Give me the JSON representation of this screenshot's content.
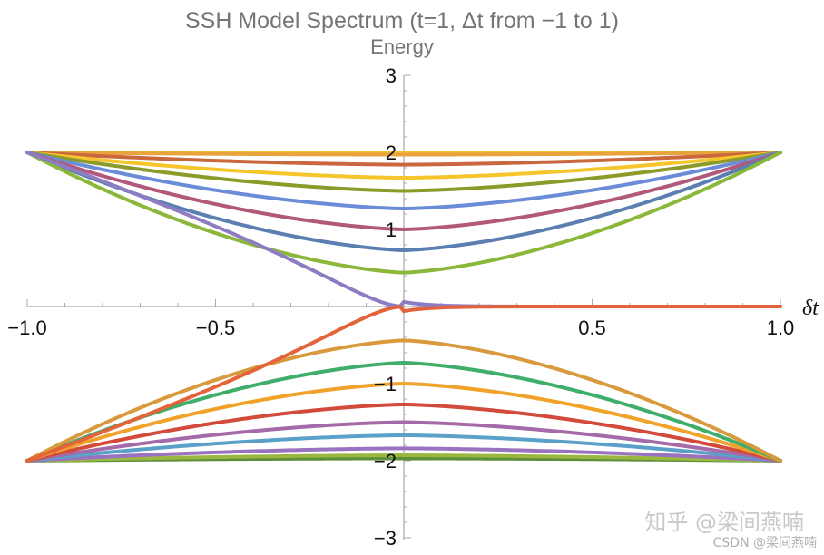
{
  "chart_data": {
    "type": "line",
    "title": "SSH Model Spectrum (t=1, Δt from −1 to 1)",
    "xlabel": "δt",
    "ylabel": "Energy",
    "xlim": [
      -1.0,
      1.0
    ],
    "ylim": [
      -3,
      3
    ],
    "x_ticks": [
      -1.0,
      -0.5,
      0.5,
      1.0
    ],
    "x_tick_labels": [
      "−1.0",
      "−0.5",
      "0.5",
      "1.0"
    ],
    "y_ticks": [
      -3,
      -2,
      -1,
      1,
      2,
      3
    ],
    "y_tick_labels": [
      "−3",
      "−2",
      "−1",
      "1",
      "2",
      "3"
    ],
    "grid": false,
    "legend": "none",
    "upper_band_min_energies": [
      1.99,
      1.97,
      1.84,
      1.67,
      1.5,
      1.27,
      1.0,
      0.73,
      0.44
    ],
    "upper_band_colors": [
      "#f2c12e",
      "#e8a33c",
      "#c9673d",
      "#f5c52c",
      "#8c9a2a",
      "#6b8cd6",
      "#b2587a",
      "#5a7fb0",
      "#8bb73b"
    ],
    "lower_band_max_energies": [
      -1.97,
      -1.93,
      -1.84,
      -1.67,
      -1.5,
      -1.27,
      -1.0,
      -0.73,
      -0.44
    ],
    "lower_band_colors": [
      "#5d8f3b",
      "#9ab840",
      "#9a72c0",
      "#5aa0c8",
      "#a56aa8",
      "#d24a3a",
      "#f0a22a",
      "#3fae6a",
      "#d89a3c"
    ],
    "edge_state_colors": [
      "#8e7cc3",
      "#e3633a"
    ],
    "watermark": {
      "line1": "知乎 @梁间燕喃",
      "line2": "CSDN @梁间燕喃"
    }
  }
}
